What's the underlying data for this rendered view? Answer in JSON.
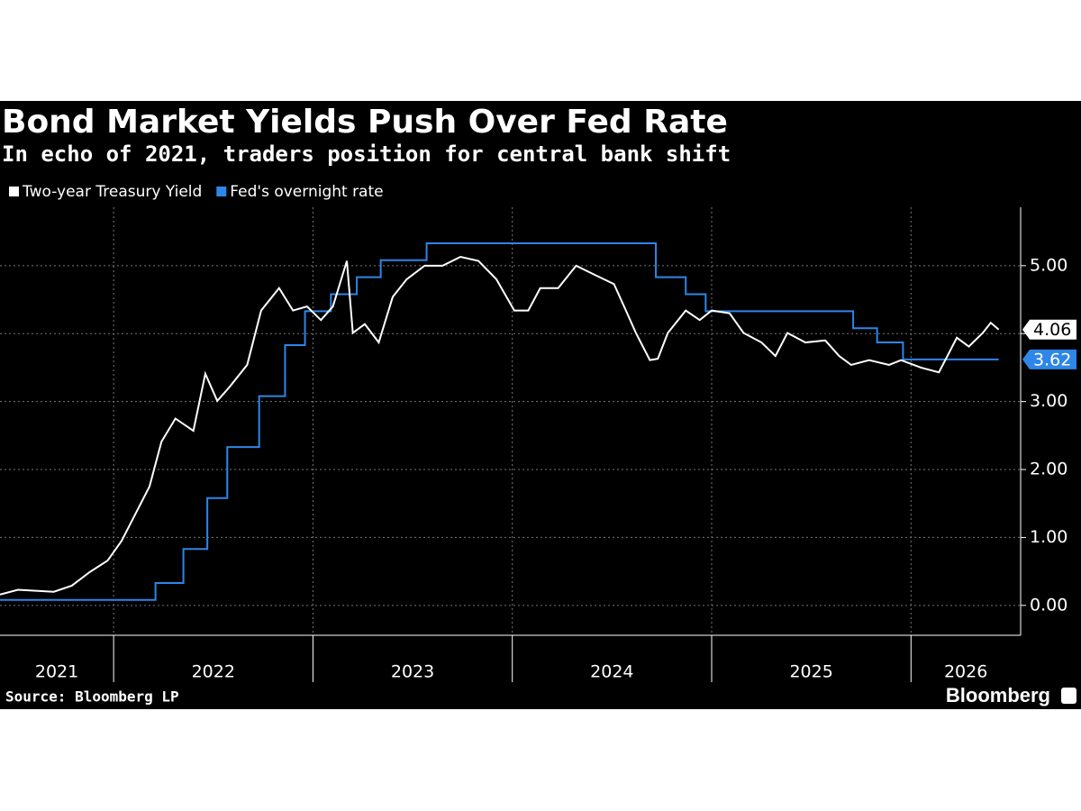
{
  "chart_data": {
    "type": "line",
    "title": "Bond Market Yields Push Over Fed Rate",
    "subtitle": "In echo of 2021, traders position for central bank shift",
    "source": "Source: Bloomberg LP",
    "brand": "Bloomberg",
    "xlim": [
      2021.43,
      2026.55
    ],
    "xticks": [
      2022,
      2023,
      2024,
      2025,
      2026
    ],
    "x_labels": [
      "2021",
      "2022",
      "2023",
      "2024",
      "2025",
      "2026"
    ],
    "ylim": [
      -0.44,
      5.86
    ],
    "yticks": [
      {
        "value": 0,
        "label": "0.00"
      },
      {
        "value": 1,
        "label": "1.00"
      },
      {
        "value": 2,
        "label": "2.00"
      },
      {
        "value": 3,
        "label": "3.00"
      },
      {
        "value": 4,
        "label": "4.00"
      },
      {
        "value": 5,
        "label": "5.00"
      }
    ],
    "grid": true,
    "series": [
      {
        "name": "Two-year Treasury Yield",
        "color": "#ffffff",
        "step": false,
        "last_label": "4.06",
        "x": [
          2021.43,
          2021.52,
          2021.7,
          2021.79,
          2021.88,
          2021.97,
          2022.04,
          2022.11,
          2022.18,
          2022.24,
          2022.31,
          2022.4,
          2022.46,
          2022.52,
          2022.58,
          2022.67,
          2022.74,
          2022.83,
          2022.9,
          2022.97,
          2023.04,
          2023.1,
          2023.17,
          2023.2,
          2023.26,
          2023.33,
          2023.4,
          2023.47,
          2023.56,
          2023.65,
          2023.74,
          2023.83,
          2023.92,
          2024.01,
          2024.08,
          2024.14,
          2024.23,
          2024.32,
          2024.41,
          2024.51,
          2024.57,
          2024.62,
          2024.69,
          2024.73,
          2024.78,
          2024.87,
          2024.94,
          2025.0,
          2025.09,
          2025.16,
          2025.25,
          2025.32,
          2025.38,
          2025.47,
          2025.57,
          2025.64,
          2025.7,
          2025.79,
          2025.89,
          2025.95,
          2026.05,
          2026.14,
          2026.23,
          2026.29,
          2026.36,
          2026.4,
          2026.44
        ],
        "values": [
          0.16,
          0.23,
          0.2,
          0.29,
          0.49,
          0.66,
          0.95,
          1.35,
          1.75,
          2.41,
          2.75,
          2.57,
          3.41,
          3.01,
          3.21,
          3.54,
          4.34,
          4.67,
          4.34,
          4.4,
          4.2,
          4.4,
          5.07,
          4.01,
          4.14,
          3.87,
          4.54,
          4.8,
          5.0,
          5.0,
          5.13,
          5.07,
          4.8,
          4.34,
          4.34,
          4.67,
          4.67,
          5.0,
          4.87,
          4.73,
          4.34,
          4.01,
          3.61,
          3.63,
          4.01,
          4.34,
          4.2,
          4.34,
          4.3,
          4.01,
          3.87,
          3.67,
          4.01,
          3.87,
          3.9,
          3.67,
          3.54,
          3.61,
          3.54,
          3.61,
          3.5,
          3.43,
          3.94,
          3.81,
          4.01,
          4.16,
          4.06
        ]
      },
      {
        "name": "Fed's overnight rate",
        "color": "#2e86e8",
        "step": true,
        "last_label": "3.62",
        "x": [
          2021.43,
          2022.21,
          2022.35,
          2022.47,
          2022.57,
          2022.73,
          2022.86,
          2022.96,
          2023.09,
          2023.22,
          2023.34,
          2023.57,
          2024.72,
          2024.87,
          2024.97,
          2025.71,
          2025.83,
          2025.96,
          2026.44
        ],
        "values": [
          0.08,
          0.33,
          0.83,
          1.58,
          2.33,
          3.08,
          3.83,
          4.33,
          4.58,
          4.83,
          5.08,
          5.33,
          4.83,
          4.58,
          4.33,
          4.08,
          3.87,
          3.62,
          3.62
        ]
      }
    ]
  }
}
